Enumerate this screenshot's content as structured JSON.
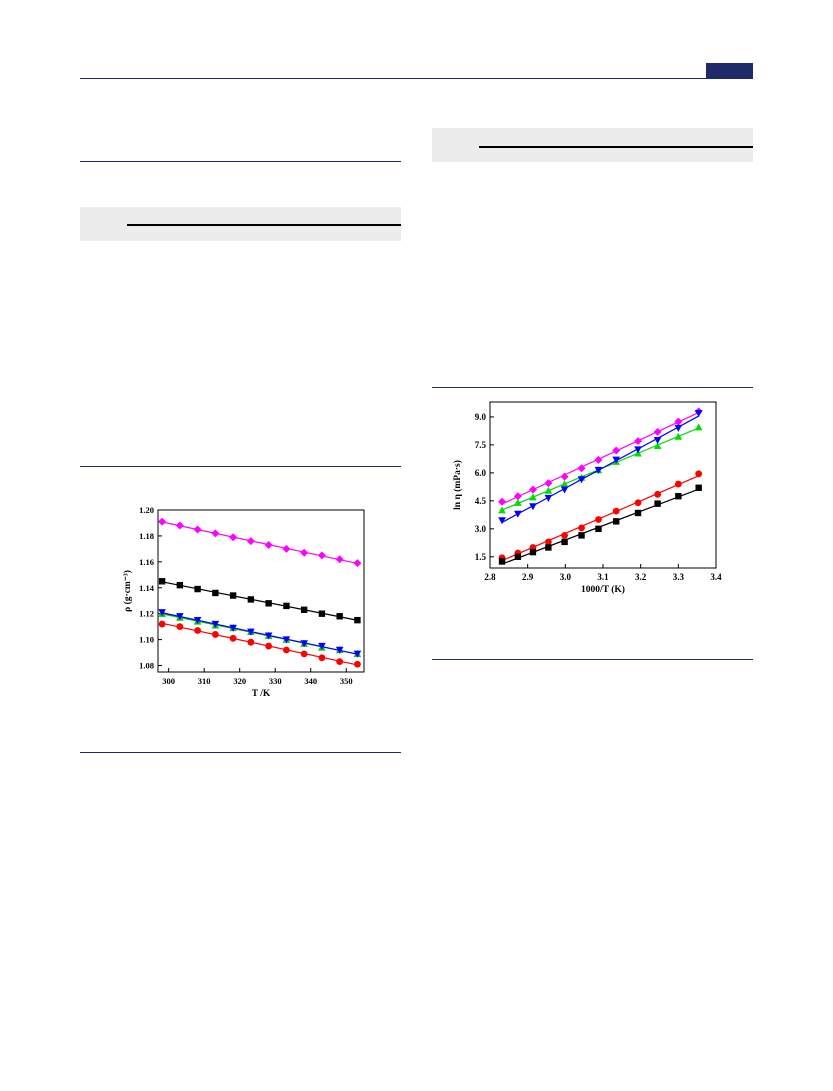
{
  "page": {
    "header_color": "#1f2a6b",
    "tab_color": "#1f2a6b"
  },
  "charts": {
    "density": {
      "type": "scatter",
      "xlabel": "T /K",
      "ylabel": "ρ (g·cm⁻³)",
      "xlim": [
        297,
        355
      ],
      "ylim": [
        1.075,
        1.2
      ],
      "xticks": [
        300,
        310,
        320,
        330,
        340,
        350
      ],
      "yticks": [
        1.08,
        1.1,
        1.12,
        1.14,
        1.16,
        1.18,
        1.2
      ],
      "series": [
        {
          "color": "#ff00ff",
          "marker": "diamond",
          "x": [
            298.15,
            303.15,
            308.15,
            313.15,
            318.15,
            323.15,
            328.15,
            333.15,
            338.15,
            343.15,
            348.15,
            353.15
          ],
          "y": [
            1.191,
            1.188,
            1.185,
            1.182,
            1.179,
            1.176,
            1.173,
            1.17,
            1.167,
            1.165,
            1.162,
            1.159
          ]
        },
        {
          "color": "#000000",
          "marker": "square",
          "x": [
            298.15,
            303.15,
            308.15,
            313.15,
            318.15,
            323.15,
            328.15,
            333.15,
            338.15,
            343.15,
            348.15,
            353.15
          ],
          "y": [
            1.145,
            1.142,
            1.139,
            1.136,
            1.134,
            1.131,
            1.128,
            1.126,
            1.123,
            1.12,
            1.118,
            1.115
          ]
        },
        {
          "color": "#00cc00",
          "marker": "triangle-up",
          "x": [
            298.15,
            303.15,
            308.15,
            313.15,
            318.15,
            323.15,
            328.15,
            333.15,
            338.15,
            343.15,
            348.15,
            353.15
          ],
          "y": [
            1.12,
            1.117,
            1.114,
            1.111,
            1.109,
            1.106,
            1.103,
            1.1,
            1.097,
            1.094,
            1.092,
            1.089
          ]
        },
        {
          "color": "#0000ff",
          "marker": "triangle-down",
          "x": [
            298.15,
            303.15,
            308.15,
            313.15,
            318.15,
            323.15,
            328.15,
            333.15,
            338.15,
            343.15,
            348.15,
            353.15
          ],
          "y": [
            1.121,
            1.118,
            1.115,
            1.112,
            1.109,
            1.106,
            1.103,
            1.1,
            1.097,
            1.095,
            1.092,
            1.089
          ]
        },
        {
          "color": "#ff0000",
          "marker": "circle",
          "x": [
            298.15,
            303.15,
            308.15,
            313.15,
            318.15,
            323.15,
            328.15,
            333.15,
            338.15,
            343.15,
            348.15,
            353.15
          ],
          "y": [
            1.112,
            1.11,
            1.107,
            1.104,
            1.101,
            1.098,
            1.095,
            1.092,
            1.089,
            1.086,
            1.083,
            1.081
          ]
        }
      ]
    },
    "viscosity": {
      "type": "scatter",
      "xlabel": "1000/T (K)",
      "ylabel": "ln η (mPa·s)",
      "xlim": [
        2.8,
        3.4
      ],
      "ylim": [
        0.9,
        9.8
      ],
      "xticks": [
        2.8,
        2.9,
        3.0,
        3.1,
        3.2,
        3.3,
        3.4
      ],
      "yticks": [
        1.5,
        3.0,
        4.5,
        6.0,
        7.5,
        9.0
      ],
      "xtick_labels": [
        "2.8",
        "2.9",
        "3.0",
        "3.1",
        "3.2",
        "3.3",
        "3.4"
      ],
      "ytick_labels": [
        "1.5",
        "3.0",
        "4.5",
        "6.0",
        "7.5",
        "9.0"
      ],
      "series": [
        {
          "color": "#ff00ff",
          "marker": "diamond",
          "x": [
            2.832,
            2.874,
            2.914,
            2.955,
            2.998,
            3.043,
            3.088,
            3.135,
            3.193,
            3.245,
            3.3,
            3.354
          ],
          "y": [
            4.45,
            4.75,
            5.1,
            5.45,
            5.8,
            6.25,
            6.7,
            7.2,
            7.7,
            8.2,
            8.75,
            9.3
          ]
        },
        {
          "color": "#00dd00",
          "marker": "triangle-up",
          "x": [
            2.832,
            2.874,
            2.914,
            2.955,
            2.998,
            3.043,
            3.088,
            3.135,
            3.193,
            3.245,
            3.3,
            3.354
          ],
          "y": [
            4.0,
            4.4,
            4.7,
            5.05,
            5.4,
            5.75,
            6.15,
            6.6,
            7.05,
            7.45,
            7.95,
            8.45
          ]
        },
        {
          "color": "#0000ff",
          "marker": "triangle-down",
          "x": [
            2.832,
            2.874,
            2.914,
            2.955,
            2.998,
            3.043,
            3.088,
            3.135,
            3.193,
            3.245,
            3.3,
            3.354
          ],
          "y": [
            3.45,
            3.8,
            4.2,
            4.65,
            5.1,
            5.65,
            6.15,
            6.7,
            7.25,
            7.75,
            8.4,
            9.2
          ]
        },
        {
          "color": "#ff0000",
          "marker": "circle",
          "x": [
            2.832,
            2.874,
            2.914,
            2.955,
            2.998,
            3.043,
            3.088,
            3.135,
            3.193,
            3.245,
            3.3,
            3.354
          ],
          "y": [
            1.45,
            1.7,
            2.0,
            2.3,
            2.65,
            3.05,
            3.5,
            3.95,
            4.4,
            4.85,
            5.4,
            5.95
          ]
        },
        {
          "color": "#000000",
          "marker": "square",
          "x": [
            2.832,
            2.874,
            2.914,
            2.955,
            2.998,
            3.043,
            3.088,
            3.135,
            3.193,
            3.245,
            3.3,
            3.354
          ],
          "y": [
            1.25,
            1.5,
            1.75,
            2.0,
            2.3,
            2.65,
            3.0,
            3.4,
            3.85,
            4.35,
            4.75,
            5.2
          ]
        }
      ]
    }
  }
}
